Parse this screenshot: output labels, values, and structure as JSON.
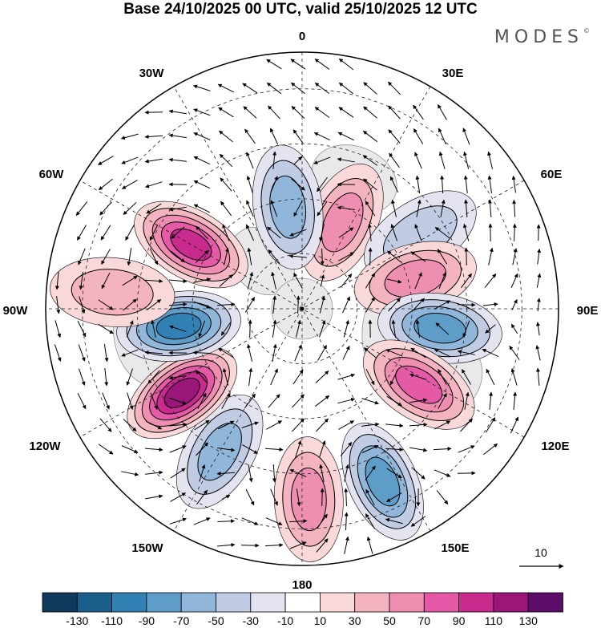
{
  "title": "Base 24/10/2025 00 UTC, valid 25/10/2025 12 UTC",
  "brand": "MODES",
  "brand_mark": "©",
  "longitude_labels": {
    "lon_0": "0",
    "lon_30e": "30E",
    "lon_60e": "60E",
    "lon_90e": "90E",
    "lon_120e": "120E",
    "lon_150e": "150E",
    "lon_180": "180",
    "lon_150w": "150W",
    "lon_120w": "120W",
    "lon_90w": "90W",
    "lon_60w": "60W",
    "lon_30w": "30W"
  },
  "reference_vector": {
    "label": "10"
  },
  "colorbar": {
    "colors": [
      "#0f3a5c",
      "#1a5f8c",
      "#3281b4",
      "#5d9dc8",
      "#90b6da",
      "#c0cbe4",
      "#e4e3f0",
      "#ffffff",
      "#f8d8d8",
      "#f3b4bf",
      "#ee8fb2",
      "#e45aa6",
      "#c82a8e",
      "#9a1678",
      "#5c0d6a"
    ],
    "labels": [
      "-130",
      "-110",
      "-90",
      "-70",
      "-50",
      "-30",
      "-10",
      "10",
      "30",
      "50",
      "70",
      "90",
      "110",
      "130"
    ]
  },
  "anomaly_cells": [
    {
      "name": "anomaly-positive-north",
      "lat": 64,
      "lon": 25,
      "value": 45
    },
    {
      "name": "anomaly-negative-north",
      "lat": 62,
      "lon": -8,
      "value": -55
    },
    {
      "name": "anomaly-positive-canada",
      "lat": 55,
      "lon": -60,
      "value": 95
    },
    {
      "name": "anomaly-negative-siberia",
      "lat": 52,
      "lon": 58,
      "value": -25
    },
    {
      "name": "anomaly-positive-siberia",
      "lat": 58,
      "lon": 75,
      "value": 45
    },
    {
      "name": "anomaly-negative-east-asia",
      "lat": 52,
      "lon": 98,
      "value": -70
    },
    {
      "name": "anomaly-positive-north-pacific",
      "lat": 52,
      "lon": 123,
      "value": 75
    },
    {
      "name": "anomaly-negative-west-pacific",
      "lat": 38,
      "lon": 155,
      "value": -65
    },
    {
      "name": "anomaly-positive-central-pacific",
      "lat": 38,
      "lon": 178,
      "value": 40
    },
    {
      "name": "anomaly-negative-pacific-east",
      "lat": 45,
      "lon": -150,
      "value": -45
    },
    {
      "name": "anomaly-positive-alaska-gulf",
      "lat": 50,
      "lon": -125,
      "value": 115
    },
    {
      "name": "anomaly-negative-north-america",
      "lat": 56,
      "lon": -98,
      "value": -80
    },
    {
      "name": "anomaly-positive-atlantic",
      "lat": 38,
      "lon": -85,
      "value": 25
    }
  ],
  "land_masses": [
    {
      "name": "landmass-eurasia-europe",
      "lat": 52,
      "lon": 22,
      "rx_deg": 12,
      "ry_deg": 9
    },
    {
      "name": "landmass-scandinavia",
      "lat": 70,
      "lon": 18,
      "rx_deg": 6,
      "ry_deg": 5
    },
    {
      "name": "landmass-greenland",
      "lat": 73,
      "lon": -40,
      "rx_deg": 8,
      "ry_deg": 10
    },
    {
      "name": "landmass-north-america",
      "lat": 48,
      "lon": -100,
      "rx_deg": 14,
      "ry_deg": 10
    },
    {
      "name": "landmass-siberia",
      "lat": 65,
      "lon": 100,
      "rx_deg": 14,
      "ry_deg": 8
    },
    {
      "name": "landmass-east-asia",
      "lat": 45,
      "lon": 115,
      "rx_deg": 10,
      "ry_deg": 8
    }
  ]
}
